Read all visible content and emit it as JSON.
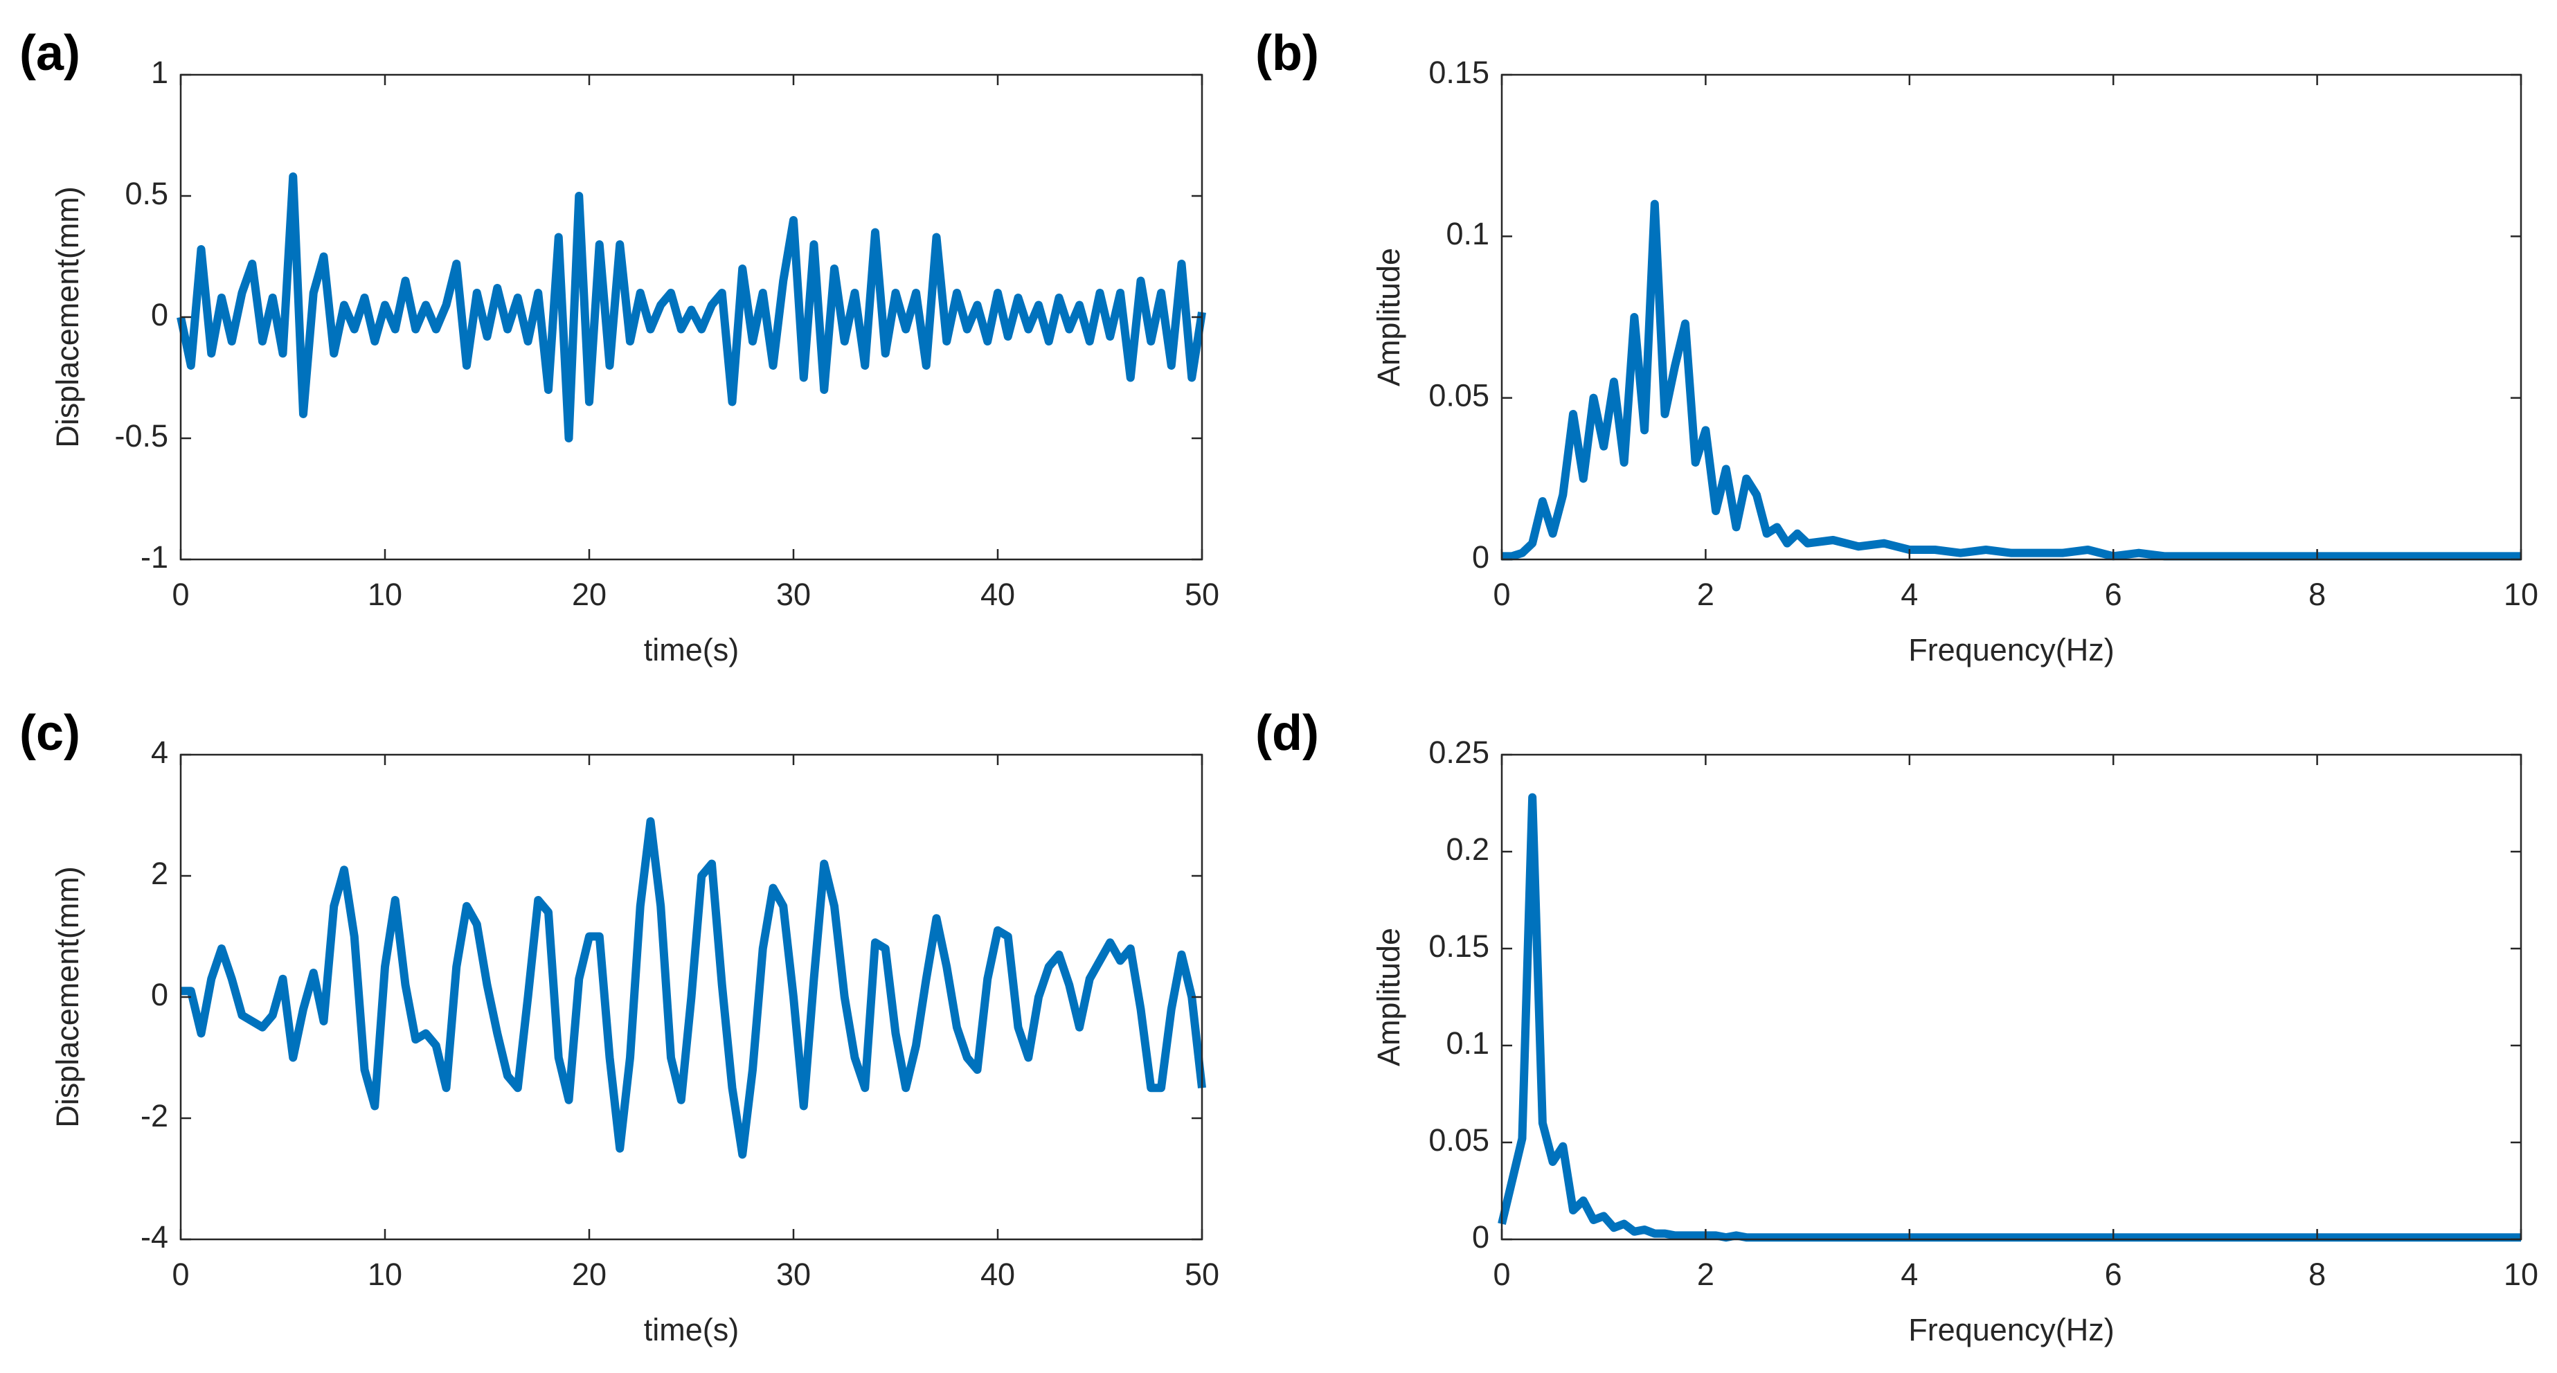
{
  "chart_data": [
    {
      "type": "line",
      "label": "(a)",
      "xlabel": "time(s)",
      "ylabel": "Displacement(mm)",
      "color": "#0072bd",
      "xlim": [
        0,
        50
      ],
      "xticks": [
        0,
        10,
        20,
        30,
        40,
        50
      ],
      "ylim": [
        -1,
        1
      ],
      "yticks": [
        -1,
        -0.5,
        0,
        0.5,
        1
      ],
      "x": [
        0,
        0.5,
        1,
        1.5,
        2,
        2.5,
        3,
        3.5,
        4,
        4.5,
        5,
        5.5,
        6,
        6.5,
        7,
        7.5,
        8,
        8.5,
        9,
        9.5,
        10,
        10.5,
        11,
        11.5,
        12,
        12.5,
        13,
        13.5,
        14,
        14.5,
        15,
        15.5,
        16,
        16.5,
        17,
        17.5,
        18,
        18.5,
        19,
        19.5,
        20,
        20.5,
        21,
        21.5,
        22,
        22.5,
        23,
        23.5,
        24,
        24.5,
        25,
        25.5,
        26,
        26.5,
        27,
        27.5,
        28,
        28.5,
        29,
        29.5,
        30,
        30.5,
        31,
        31.5,
        32,
        32.5,
        33,
        33.5,
        34,
        34.5,
        35,
        35.5,
        36,
        36.5,
        37,
        37.5,
        38,
        38.5,
        39,
        39.5,
        40,
        40.5,
        41,
        41.5,
        42,
        42.5,
        43,
        43.5,
        44,
        44.5,
        45,
        45.5,
        46,
        46.5,
        47,
        47.5,
        48,
        48.5,
        49,
        49.5,
        50
      ],
      "values": [
        0,
        -0.2,
        0.28,
        -0.15,
        0.08,
        -0.1,
        0.1,
        0.22,
        -0.1,
        0.08,
        -0.15,
        0.58,
        -0.4,
        0.1,
        0.25,
        -0.15,
        0.05,
        -0.05,
        0.08,
        -0.1,
        0.05,
        -0.05,
        0.15,
        -0.05,
        0.05,
        -0.05,
        0.05,
        0.22,
        -0.2,
        0.1,
        -0.08,
        0.12,
        -0.05,
        0.08,
        -0.1,
        0.1,
        -0.3,
        0.33,
        -0.5,
        0.5,
        -0.35,
        0.3,
        -0.2,
        0.3,
        -0.1,
        0.1,
        -0.05,
        0.05,
        0.1,
        -0.05,
        0.03,
        -0.05,
        0.05,
        0.1,
        -0.35,
        0.2,
        -0.1,
        0.1,
        -0.2,
        0.15,
        0.4,
        -0.25,
        0.3,
        -0.3,
        0.2,
        -0.1,
        0.1,
        -0.2,
        0.35,
        -0.15,
        0.1,
        -0.05,
        0.1,
        -0.2,
        0.33,
        -0.1,
        0.1,
        -0.05,
        0.05,
        -0.1,
        0.1,
        -0.08,
        0.08,
        -0.05,
        0.05,
        -0.1,
        0.08,
        -0.05,
        0.05,
        -0.1,
        0.1,
        -0.08,
        0.1,
        -0.25,
        0.15,
        -0.1,
        0.1,
        -0.2,
        0.22,
        -0.25,
        0.02
      ]
    },
    {
      "type": "line",
      "label": "(b)",
      "xlabel": "Frequency(Hz)",
      "ylabel": "Amplitude",
      "color": "#0072bd",
      "xlim": [
        0,
        10
      ],
      "xticks": [
        0,
        2,
        4,
        6,
        8,
        10
      ],
      "ylim": [
        0,
        0.15
      ],
      "yticks": [
        0,
        0.05,
        0.1,
        0.15
      ],
      "x": [
        0,
        0.1,
        0.2,
        0.3,
        0.4,
        0.5,
        0.6,
        0.7,
        0.8,
        0.9,
        1,
        1.1,
        1.2,
        1.3,
        1.4,
        1.5,
        1.6,
        1.7,
        1.8,
        1.9,
        2,
        2.1,
        2.2,
        2.3,
        2.4,
        2.5,
        2.6,
        2.7,
        2.8,
        2.9,
        3,
        3.25,
        3.5,
        3.75,
        4,
        4.25,
        4.5,
        4.75,
        5,
        5.25,
        5.5,
        5.75,
        6,
        6.25,
        6.5,
        6.75,
        7,
        7.25,
        7.5,
        7.75,
        8,
        8.25,
        8.5,
        8.75,
        9,
        9.25,
        9.5,
        9.75,
        10
      ],
      "values": [
        0.001,
        0.001,
        0.002,
        0.005,
        0.018,
        0.008,
        0.02,
        0.045,
        0.025,
        0.05,
        0.035,
        0.055,
        0.03,
        0.075,
        0.04,
        0.11,
        0.045,
        0.06,
        0.073,
        0.03,
        0.04,
        0.015,
        0.028,
        0.01,
        0.025,
        0.02,
        0.008,
        0.01,
        0.005,
        0.008,
        0.005,
        0.006,
        0.004,
        0.005,
        0.003,
        0.003,
        0.002,
        0.003,
        0.002,
        0.002,
        0.002,
        0.003,
        0.001,
        0.002,
        0.001,
        0.001,
        0.001,
        0.001,
        0.001,
        0.001,
        0.001,
        0.001,
        0.001,
        0.001,
        0.001,
        0.001,
        0.001,
        0.001,
        0.001
      ]
    },
    {
      "type": "line",
      "label": "(c)",
      "xlabel": "time(s)",
      "ylabel": "Displacement(mm)",
      "color": "#0072bd",
      "xlim": [
        0,
        50
      ],
      "xticks": [
        0,
        10,
        20,
        30,
        40,
        50
      ],
      "ylim": [
        -4,
        4
      ],
      "yticks": [
        -4,
        -2,
        0,
        2,
        4
      ],
      "x": [
        0,
        0.5,
        1,
        1.5,
        2,
        2.5,
        3,
        3.5,
        4,
        4.5,
        5,
        5.5,
        6,
        6.5,
        7,
        7.5,
        8,
        8.5,
        9,
        9.5,
        10,
        10.5,
        11,
        11.5,
        12,
        12.5,
        13,
        13.5,
        14,
        14.5,
        15,
        15.5,
        16,
        16.5,
        17,
        17.5,
        18,
        18.5,
        19,
        19.5,
        20,
        20.5,
        21,
        21.5,
        22,
        22.5,
        23,
        23.5,
        24,
        24.5,
        25,
        25.5,
        26,
        26.5,
        27,
        27.5,
        28,
        28.5,
        29,
        29.5,
        30,
        30.5,
        31,
        31.5,
        32,
        32.5,
        33,
        33.5,
        34,
        34.5,
        35,
        35.5,
        36,
        36.5,
        37,
        37.5,
        38,
        38.5,
        39,
        39.5,
        40,
        40.5,
        41,
        41.5,
        42,
        42.5,
        43,
        43.5,
        44,
        44.5,
        45,
        45.5,
        46,
        46.5,
        47,
        47.5,
        48,
        48.5,
        49,
        49.5,
        50
      ],
      "values": [
        0.1,
        0.1,
        -0.6,
        0.3,
        0.8,
        0.3,
        -0.3,
        -0.4,
        -0.5,
        -0.3,
        0.3,
        -1.0,
        -0.2,
        0.4,
        -0.4,
        1.5,
        2.1,
        1.0,
        -1.2,
        -1.8,
        0.5,
        1.6,
        0.2,
        -0.7,
        -0.6,
        -0.8,
        -1.5,
        0.5,
        1.5,
        1.2,
        0.2,
        -0.6,
        -1.3,
        -1.5,
        0,
        1.6,
        1.4,
        -1.0,
        -1.7,
        0.3,
        1.0,
        1.0,
        -1.0,
        -2.5,
        -1.0,
        1.5,
        2.9,
        1.5,
        -1.0,
        -1.7,
        0,
        2.0,
        2.2,
        0.2,
        -1.5,
        -2.6,
        -1.2,
        0.8,
        1.8,
        1.5,
        0,
        -1.8,
        0.3,
        2.2,
        1.5,
        0,
        -1.0,
        -1.5,
        0.9,
        0.8,
        -0.6,
        -1.5,
        -0.8,
        0.3,
        1.3,
        0.5,
        -0.5,
        -1.0,
        -1.2,
        0.3,
        1.1,
        1.0,
        -0.5,
        -1.0,
        0,
        0.5,
        0.7,
        0.2,
        -0.5,
        0.3,
        0.6,
        0.9,
        0.6,
        0.8,
        -0.2,
        -1.5,
        -1.5,
        -0.2,
        0.7,
        0,
        -1.5
      ]
    },
    {
      "type": "line",
      "label": "(d)",
      "xlabel": "Frequency(Hz)",
      "ylabel": "Amplitude",
      "color": "#0072bd",
      "xlim": [
        0,
        10
      ],
      "xticks": [
        0,
        2,
        4,
        6,
        8,
        10
      ],
      "ylim": [
        0,
        0.25
      ],
      "yticks": [
        0,
        0.05,
        0.1,
        0.15,
        0.2,
        0.25
      ],
      "x": [
        0,
        0.1,
        0.2,
        0.3,
        0.4,
        0.5,
        0.6,
        0.7,
        0.8,
        0.9,
        1,
        1.1,
        1.2,
        1.3,
        1.4,
        1.5,
        1.6,
        1.7,
        1.8,
        1.9,
        2,
        2.1,
        2.2,
        2.3,
        2.4,
        2.5,
        2.6,
        2.7,
        2.8,
        2.9,
        3,
        3.25,
        3.5,
        3.75,
        4,
        4.25,
        4.5,
        4.75,
        5,
        5.25,
        5.5,
        5.75,
        6,
        6.25,
        6.5,
        6.75,
        7,
        7.25,
        7.5,
        7.75,
        8,
        8.25,
        8.5,
        8.75,
        9,
        9.25,
        9.5,
        9.75,
        10
      ],
      "values": [
        0.008,
        0.03,
        0.052,
        0.228,
        0.06,
        0.04,
        0.048,
        0.015,
        0.02,
        0.01,
        0.012,
        0.006,
        0.008,
        0.004,
        0.005,
        0.003,
        0.003,
        0.002,
        0.002,
        0.002,
        0.002,
        0.002,
        0.001,
        0.002,
        0.001,
        0.001,
        0.001,
        0.001,
        0.001,
        0.001,
        0.001,
        0.001,
        0.001,
        0.001,
        0.001,
        0.001,
        0.001,
        0.001,
        0.001,
        0.001,
        0.001,
        0.001,
        0.001,
        0.001,
        0.001,
        0.001,
        0.001,
        0.001,
        0.001,
        0.001,
        0.001,
        0.001,
        0.001,
        0.001,
        0.001,
        0.001,
        0.001,
        0.001,
        0.001
      ]
    }
  ]
}
